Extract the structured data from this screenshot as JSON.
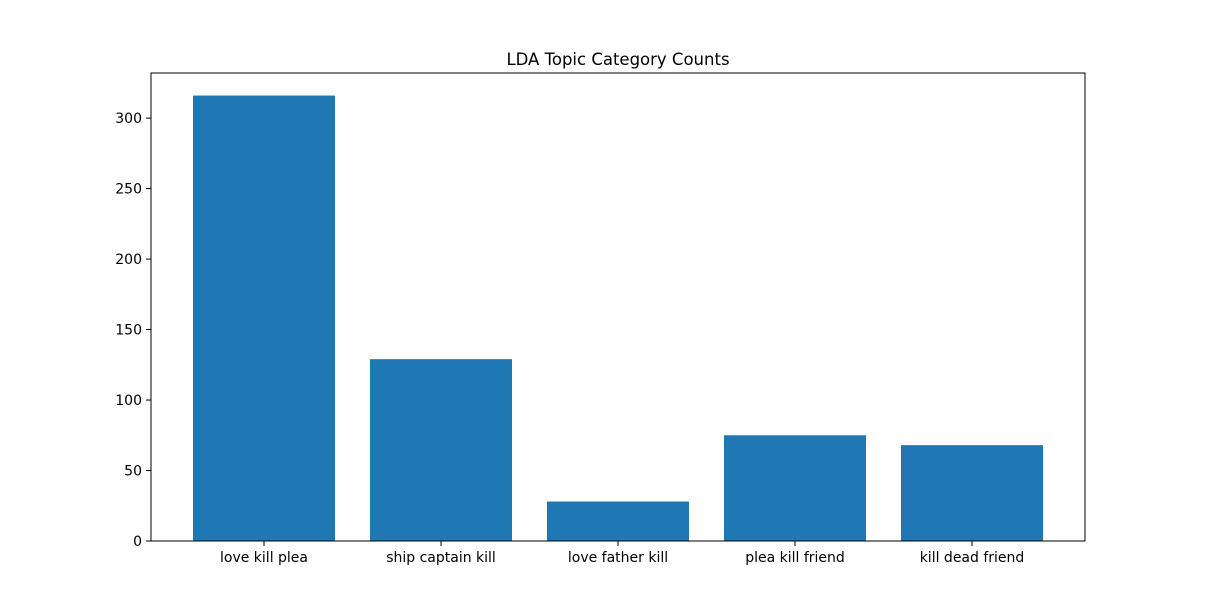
{
  "chart_data": {
    "type": "bar",
    "title": "LDA Topic Category Counts",
    "xlabel": "",
    "ylabel": "",
    "categories": [
      "love kill plea",
      "ship captain kill",
      "love father kill",
      "plea kill friend",
      "kill dead friend"
    ],
    "values": [
      316,
      129,
      28,
      75,
      68
    ],
    "ylim": [
      0,
      332
    ],
    "yticks": [
      0,
      50,
      100,
      150,
      200,
      250,
      300
    ],
    "grid": false,
    "legend": "none",
    "bar_color": "#1f77b4"
  }
}
